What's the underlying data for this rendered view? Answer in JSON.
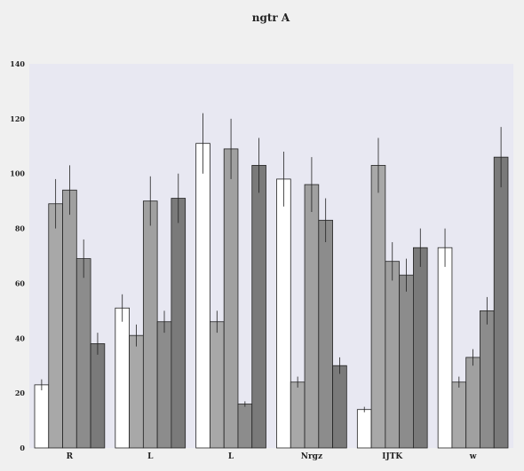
{
  "chart_data": {
    "type": "bar",
    "title": "ngtr A",
    "xlabel": "",
    "ylabel": "",
    "categories": [
      "R",
      "L",
      "L",
      "Nrgz",
      "IJTK",
      "w"
    ],
    "ylim": [
      0,
      140
    ],
    "yticks": [
      0,
      20,
      40,
      60,
      80,
      100,
      120,
      140
    ],
    "grid": false,
    "series": [
      {
        "color": "#ffffff",
        "values": [
          23,
          51,
          111,
          98,
          14,
          73
        ],
        "errors": [
          2,
          5,
          11,
          10,
          1,
          7
        ]
      },
      {
        "color": "#a8a8a8",
        "values": [
          89,
          41,
          46,
          24,
          103,
          24
        ],
        "errors": [
          9,
          4,
          4,
          2,
          10,
          2
        ]
      },
      {
        "color": "#a0a0a0",
        "values": [
          94,
          90,
          109,
          96,
          68,
          33
        ],
        "errors": [
          9,
          9,
          11,
          10,
          7,
          3
        ]
      },
      {
        "color": "#8c8c8c",
        "values": [
          69,
          46,
          16,
          83,
          63,
          50
        ],
        "errors": [
          7,
          4,
          1,
          8,
          6,
          5
        ]
      },
      {
        "color": "#7a7a7a",
        "values": [
          38,
          91,
          103,
          30,
          73,
          106
        ],
        "errors": [
          4,
          9,
          10,
          3,
          7,
          11
        ]
      }
    ]
  }
}
